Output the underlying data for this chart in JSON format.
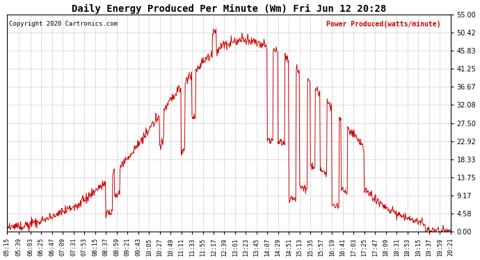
{
  "title": "Daily Energy Produced Per Minute (Wm) Fri Jun 12 20:28",
  "copyright": "Copyright 2020 Cartronics.com",
  "legend_label": "Power Produced(watts/minute)",
  "ymin": 0.0,
  "ymax": 55.0,
  "yticks": [
    0.0,
    4.58,
    9.17,
    13.75,
    18.33,
    22.92,
    27.5,
    32.08,
    36.67,
    41.25,
    45.83,
    50.42,
    55.0
  ],
  "line_color": "#cc0000",
  "grid_color": "#bbbbbb",
  "background_color": "#ffffff",
  "title_color": "#000000",
  "copyright_color": "#000000",
  "legend_color": "#cc0000",
  "xtick_labels": [
    "05:15",
    "05:39",
    "06:03",
    "06:25",
    "06:47",
    "07:09",
    "07:31",
    "07:53",
    "08:15",
    "08:37",
    "08:59",
    "09:21",
    "09:43",
    "10:05",
    "10:27",
    "10:49",
    "11:11",
    "11:33",
    "11:55",
    "12:17",
    "12:39",
    "13:01",
    "13:23",
    "13:45",
    "14:07",
    "14:29",
    "14:51",
    "15:13",
    "15:35",
    "15:57",
    "16:19",
    "16:41",
    "17:03",
    "17:25",
    "17:47",
    "18:09",
    "18:31",
    "18:53",
    "19:15",
    "19:37",
    "19:59",
    "20:21"
  ]
}
